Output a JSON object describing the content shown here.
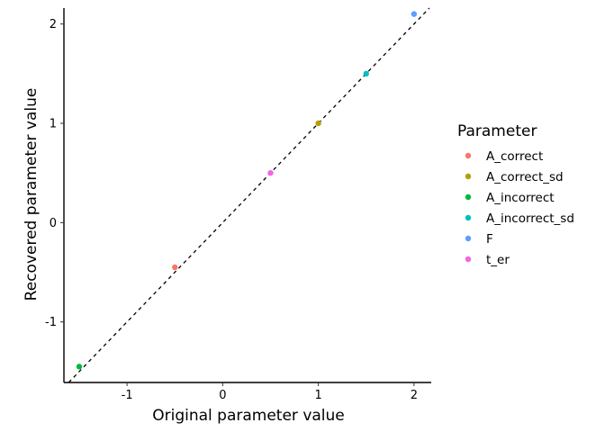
{
  "chart_data": {
    "type": "scatter",
    "xlabel": "Original parameter value",
    "ylabel": "Recovered parameter value",
    "xlim": [
      -1.66,
      2.18
    ],
    "ylim": [
      -1.61,
      2.16
    ],
    "x_ticks": [
      -1,
      0,
      1,
      2
    ],
    "y_ticks": [
      -1,
      0,
      1,
      2
    ],
    "grid": false,
    "reference_line": {
      "type": "identity",
      "style": "dashed",
      "color": "#000000"
    },
    "legend": {
      "title": "Parameter",
      "placement": "right"
    },
    "series": [
      {
        "name": "A_correct",
        "color": "#F8766D",
        "points": [
          {
            "x": -0.5,
            "y": -0.45
          }
        ]
      },
      {
        "name": "A_correct_sd",
        "color": "#B79F00",
        "points": [
          {
            "x": 1.0,
            "y": 1.0
          }
        ]
      },
      {
        "name": "A_incorrect",
        "color": "#00BA38",
        "points": [
          {
            "x": -1.5,
            "y": -1.45
          }
        ]
      },
      {
        "name": "A_incorrect_sd",
        "color": "#00BFC4",
        "points": [
          {
            "x": 1.5,
            "y": 1.5
          }
        ]
      },
      {
        "name": "F",
        "color": "#619CFF",
        "points": [
          {
            "x": 2.0,
            "y": 2.1
          }
        ]
      },
      {
        "name": "t_er",
        "color": "#F564E3",
        "points": [
          {
            "x": 0.5,
            "y": 0.5
          }
        ]
      }
    ]
  }
}
